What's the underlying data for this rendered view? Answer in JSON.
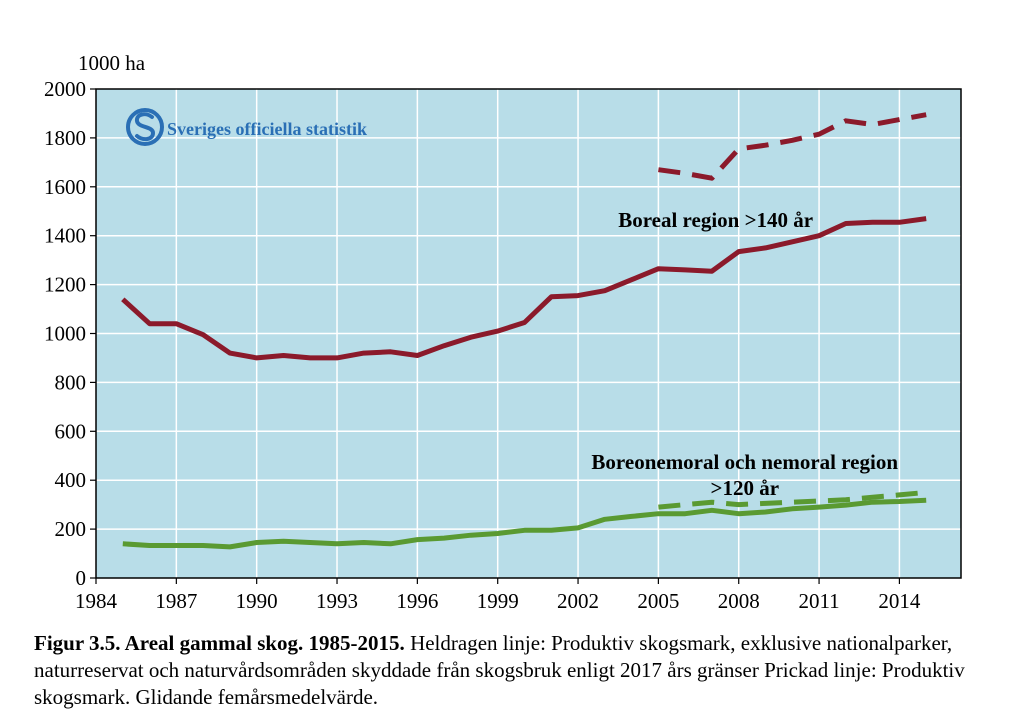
{
  "logo": {
    "text": "Sveriges officiella statistik",
    "color": "#2a6fb5"
  },
  "caption": {
    "bold": "Figur 3.5. Areal gammal skog. 1985-2015.",
    "text": " Heldragen linje: Produktiv skogsmark, exklusive nationalparker, naturreservat och naturvårdsområden skyddade från skogsbruk enligt 2017 års gränser Prickad linje: Produktiv skogsmark. Glidande femårsmedelvärde."
  },
  "chart_data": {
    "type": "line",
    "title": "",
    "xlabel": "",
    "ylabel": "1000 ha",
    "xlim": [
      1984,
      2016.3
    ],
    "ylim": [
      0,
      2000
    ],
    "x_ticks": [
      1984,
      1987,
      1990,
      1993,
      1996,
      1999,
      2002,
      2005,
      2008,
      2011,
      2014
    ],
    "y_ticks": [
      0,
      200,
      400,
      600,
      800,
      1000,
      1200,
      1400,
      1600,
      1800,
      2000
    ],
    "grid": true,
    "background": "#b8dde8",
    "annotations": [
      {
        "text": "Boreal region >140 år",
        "x": 2003.5,
        "y": 1435
      },
      {
        "text": "Boreonemoral och nemoral region",
        "x": 2002.5,
        "y": 445
      },
      {
        "text": ">120 år",
        "x": 2002.5,
        "y": 340
      }
    ],
    "series": [
      {
        "color": "#8b1a2b",
        "dash": false,
        "x": [
          1985,
          1986,
          1987,
          1988,
          1989,
          1990,
          1991,
          1992,
          1993,
          1994,
          1995,
          1996,
          1997,
          1998,
          1999,
          2000,
          2001,
          2002,
          2003,
          2004,
          2005,
          2006,
          2007,
          2008,
          2009,
          2010,
          2011,
          2012,
          2013,
          2014,
          2015
        ],
        "y": [
          1140,
          1040,
          1040,
          995,
          920,
          900,
          910,
          900,
          900,
          920,
          925,
          910,
          950,
          985,
          1010,
          1045,
          1150,
          1155,
          1175,
          1220,
          1265,
          1260,
          1255,
          1335,
          1350,
          1375,
          1400,
          1450,
          1455,
          1455,
          1470
        ]
      },
      {
        "color": "#8b1a2b",
        "dash": true,
        "x": [
          2005,
          2006,
          2007,
          2008,
          2009,
          2010,
          2011,
          2012,
          2013,
          2014,
          2015
        ],
        "y": [
          1670,
          1655,
          1635,
          1755,
          1770,
          1790,
          1815,
          1870,
          1855,
          1875,
          1895
        ]
      },
      {
        "color": "#5a9a32",
        "dash": false,
        "x": [
          1985,
          1986,
          1987,
          1988,
          1989,
          1990,
          1991,
          1992,
          1993,
          1994,
          1995,
          1996,
          1997,
          1998,
          1999,
          2000,
          2001,
          2002,
          2003,
          2004,
          2005,
          2006,
          2007,
          2008,
          2009,
          2010,
          2011,
          2012,
          2013,
          2014,
          2015
        ],
        "y": [
          140,
          133,
          133,
          133,
          127,
          145,
          150,
          145,
          140,
          145,
          140,
          157,
          163,
          175,
          182,
          195,
          195,
          205,
          240,
          252,
          263,
          263,
          277,
          263,
          270,
          283,
          290,
          298,
          310,
          313,
          318
        ]
      },
      {
        "color": "#5a9a32",
        "dash": true,
        "x": [
          2005,
          2006,
          2007,
          2008,
          2009,
          2010,
          2011,
          2012,
          2013,
          2014,
          2015
        ],
        "y": [
          290,
          300,
          310,
          300,
          305,
          310,
          315,
          320,
          330,
          340,
          350
        ]
      }
    ]
  }
}
